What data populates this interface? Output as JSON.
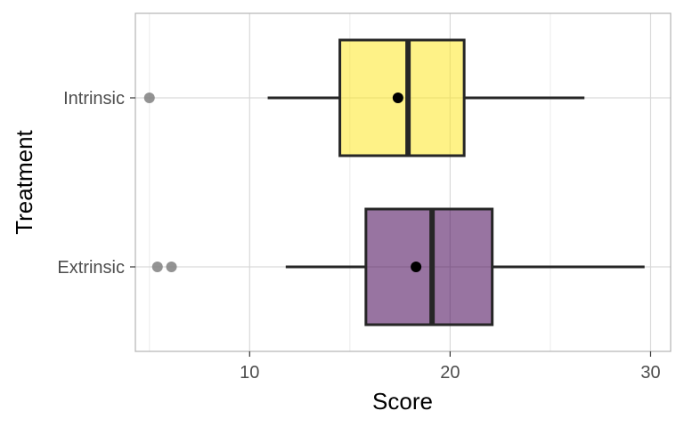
{
  "chart_data": {
    "type": "boxplot",
    "orientation": "horizontal",
    "xlabel": "Score",
    "ylabel": "Treatment",
    "xlim": [
      4.3,
      31.0
    ],
    "x_ticks": [
      10,
      20,
      30
    ],
    "x_tick_labels": [
      "10",
      "20",
      "30"
    ],
    "grid": true,
    "categories": [
      "Intrinsic",
      "Extrinsic"
    ],
    "boxes": [
      {
        "category": "Intrinsic",
        "whisker_low": 10.9,
        "q1": 14.5,
        "median": 17.9,
        "q3": 20.7,
        "whisker_high": 26.7,
        "mean": 17.4,
        "outliers": [
          5.0
        ],
        "fill": "#fde725"
      },
      {
        "category": "Extrinsic",
        "whisker_low": 11.8,
        "q1": 15.8,
        "median": 19.1,
        "q3": 22.1,
        "whisker_high": 29.7,
        "mean": 18.3,
        "outliers": [
          5.4,
          6.1
        ],
        "fill": "#440154"
      }
    ],
    "colors": {
      "box_outline": "#262626",
      "grid": "#d9d9d9",
      "panel_border": "#b3b3b3",
      "outlier": "#808080",
      "mean_point": "#000000"
    }
  }
}
